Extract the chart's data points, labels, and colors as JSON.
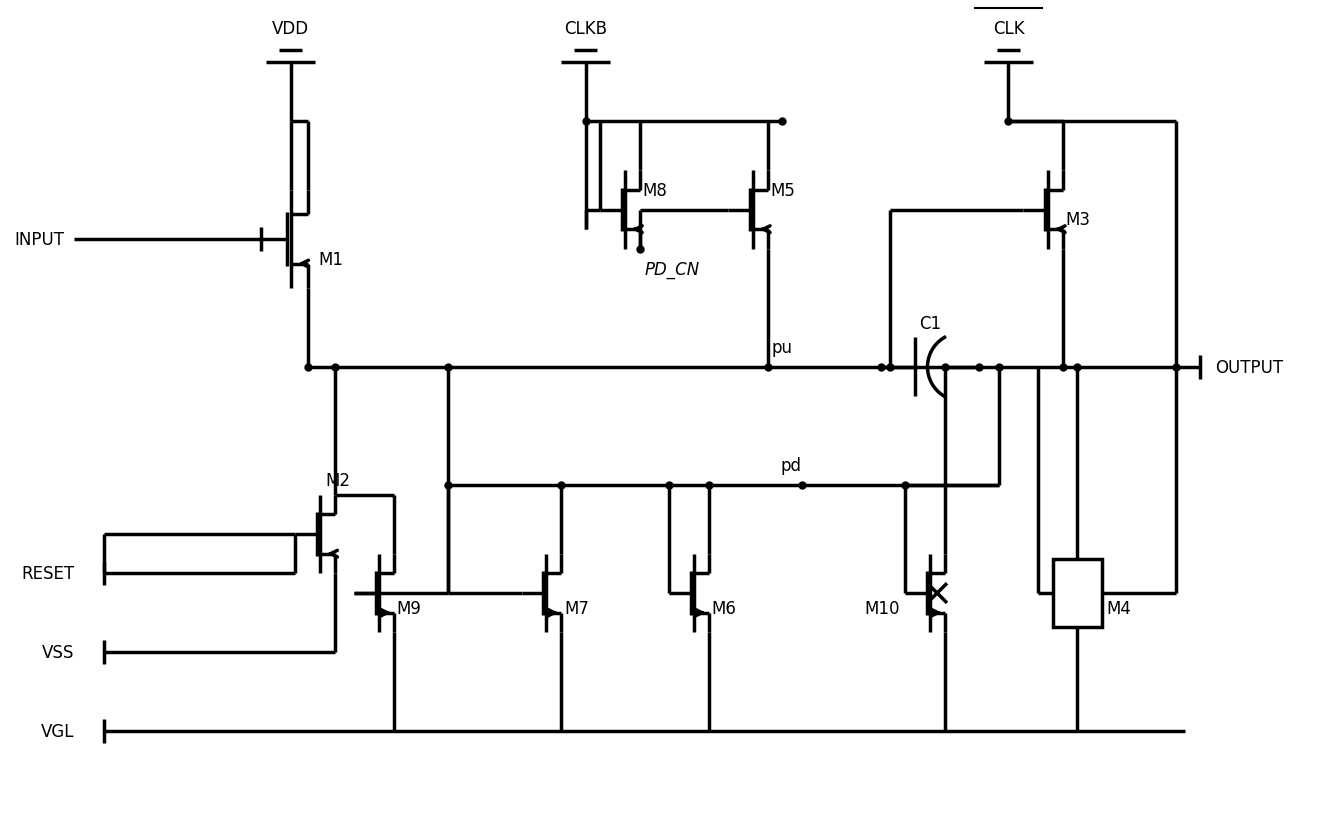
{
  "bg_color": "#ffffff",
  "line_color": "#000000",
  "lw": 2.5,
  "dot_size": 5,
  "font_size": 12,
  "fig_w": 13.42,
  "fig_h": 8.37,
  "dpi": 100,
  "xlim": [
    0,
    134.2
  ],
  "ylim": [
    0,
    83.7
  ]
}
